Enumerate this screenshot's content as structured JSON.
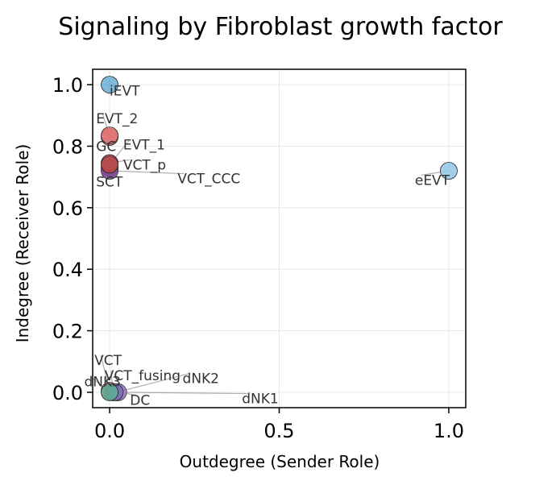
{
  "chart_data": {
    "type": "scatter",
    "title": "Signaling by Fibroblast growth factor",
    "xlabel": "Outdegree (Sender Role)",
    "ylabel": "Indegree (Receiver Role)",
    "xlim": [
      -0.05,
      1.05
    ],
    "ylim": [
      -0.05,
      1.05
    ],
    "xticks": [
      0.0,
      0.5,
      1.0
    ],
    "xtick_labels": [
      "0.0",
      "0.5",
      "1.0"
    ],
    "yticks": [
      0.0,
      0.2,
      0.4,
      0.6,
      0.8,
      1.0
    ],
    "ytick_labels": [
      "0.0",
      "0.2",
      "0.4",
      "0.6",
      "0.8",
      "1.0"
    ],
    "grid": true,
    "points": [
      {
        "label": "VCT",
        "x": 0.0,
        "y": 0.005,
        "color": "#e07a8f"
      },
      {
        "label": "VCT_fusing",
        "x": 0.01,
        "y": 0.0,
        "color": "#9b8fc6"
      },
      {
        "label": "dNK2",
        "x": 0.02,
        "y": 0.0,
        "color": "#8e7cc3"
      },
      {
        "label": "DC",
        "x": 0.025,
        "y": 0.0,
        "color": "#a38ad0"
      },
      {
        "label": "dNK1",
        "x": 0.015,
        "y": 0.0,
        "color": "#7c6cb8"
      },
      {
        "label": "dNK3",
        "x": 0.0,
        "y": 0.0,
        "color": "#5fae94"
      },
      {
        "label": "SCT",
        "x": 0.0,
        "y": 0.73,
        "color": "#c05454"
      },
      {
        "label": "VCT_CCC",
        "x": 0.0,
        "y": 0.72,
        "color": "#7b4a9c"
      },
      {
        "label": "VCT_p",
        "x": 0.0,
        "y": 0.745,
        "color": "#c9505a"
      },
      {
        "label": "EVT_1",
        "x": 0.0,
        "y": 0.74,
        "color": "#b44a4a"
      },
      {
        "label": "GC",
        "x": 0.0,
        "y": 0.83,
        "color": "#d96a6a"
      },
      {
        "label": "EVT_2",
        "x": 0.0,
        "y": 0.835,
        "color": "#e07575"
      },
      {
        "label": "eEVT",
        "x": 1.0,
        "y": 0.72,
        "color": "#92c8e6"
      },
      {
        "label": "iEVT",
        "x": 0.0,
        "y": 1.0,
        "color": "#6aaed4"
      }
    ],
    "annotations": [
      {
        "label": "iEVT",
        "tx": 0.0,
        "ty": 0.98
      },
      {
        "label": "EVT_2",
        "tx": -0.04,
        "ty": 0.89
      },
      {
        "label": "GC",
        "tx": -0.04,
        "ty": 0.8
      },
      {
        "label": "EVT_1",
        "tx": 0.04,
        "ty": 0.805
      },
      {
        "label": "VCT_p",
        "tx": 0.04,
        "ty": 0.74
      },
      {
        "label": "VCT_CCC",
        "tx": 0.2,
        "ty": 0.695
      },
      {
        "label": "SCT",
        "tx": -0.04,
        "ty": 0.685
      },
      {
        "label": "eEVT",
        "tx": 0.9,
        "ty": 0.69
      },
      {
        "label": "VCT",
        "tx": -0.045,
        "ty": 0.105
      },
      {
        "label": "VCT_fusing",
        "tx": -0.015,
        "ty": 0.055
      },
      {
        "label": "dNK3",
        "tx": -0.075,
        "ty": 0.035
      },
      {
        "label": "dNK2",
        "tx": 0.215,
        "ty": 0.045
      },
      {
        "label": "DC",
        "tx": 0.06,
        "ty": -0.025
      },
      {
        "label": "dNK1",
        "tx": 0.39,
        "ty": -0.02
      }
    ]
  }
}
